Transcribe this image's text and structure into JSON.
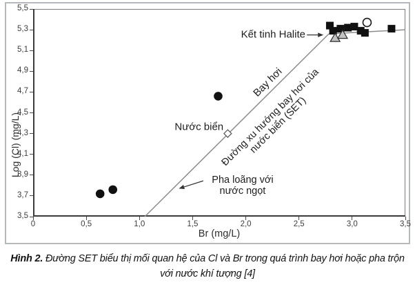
{
  "figure": {
    "caption": {
      "prefix": "Hình 2.",
      "line1": " Đường SET biểu thị mối quan hệ của Cl và Br trong quá trình bay hơi hoặc pha trộn",
      "line2": "với nước khí tượng [4]"
    }
  },
  "chart_data": {
    "type": "scatter",
    "title": "",
    "xlabel": "Br (mg/L)",
    "ylabel": "Log (Cl) (mg/L)",
    "xlim": [
      0,
      3.5
    ],
    "ylim": [
      3.5,
      5.5
    ],
    "grid": false,
    "x_tick_values": [
      0,
      0.5,
      1.0,
      1.5,
      2.0,
      2.5,
      3.0,
      3.5
    ],
    "x_tick_labels": [
      "0",
      "0,5",
      "1,0",
      "1,5",
      "2,0",
      "2,5",
      "3,0",
      "3,5"
    ],
    "y_tick_values": [
      3.5,
      3.7,
      3.9,
      4.1,
      4.3,
      4.5,
      4.7,
      4.9,
      5.1,
      5.3,
      5.5
    ],
    "y_tick_labels": [
      "3,5",
      "3,7",
      "3,9",
      "4,1",
      "4,3",
      "4,5",
      "4,7",
      "4,9",
      "5,1",
      "5,3",
      "5,5"
    ],
    "colors": {
      "line": "#8c8c8c",
      "marker_black": "#111111",
      "triangle_fill": "#c2c2c2",
      "triangle_stroke": "#2a2a2a",
      "open_stroke": "#1a1a1a",
      "diamond_stroke": "#555555",
      "arrow": "#333333"
    },
    "lines": [
      {
        "name": "set-evaporation-line",
        "points": [
          [
            1.05,
            3.5
          ],
          [
            2.78,
            5.26
          ]
        ]
      },
      {
        "name": "halite-branch-line",
        "points": [
          [
            2.78,
            5.26
          ],
          [
            3.5,
            5.3
          ]
        ]
      }
    ],
    "series": [
      {
        "name": "nuoc-ngot-pha-loang",
        "marker": "filled-circle",
        "points": [
          [
            0.63,
            3.72
          ],
          [
            0.75,
            3.76
          ],
          [
            1.74,
            4.66
          ]
        ]
      },
      {
        "name": "nuoc-bien-seawater",
        "marker": "open-diamond",
        "points": [
          [
            1.83,
            4.3
          ]
        ]
      },
      {
        "name": "ket-tinh-halite-squares",
        "marker": "filled-square",
        "points": [
          [
            2.79,
            5.34
          ],
          [
            2.82,
            5.29
          ],
          [
            2.89,
            5.31
          ],
          [
            2.96,
            5.32
          ],
          [
            3.02,
            5.33
          ],
          [
            3.08,
            5.29
          ],
          [
            3.12,
            5.27
          ],
          [
            3.37,
            5.31
          ]
        ]
      },
      {
        "name": "halite-triangles",
        "marker": "gray-triangle",
        "points": [
          [
            2.84,
            5.22
          ],
          [
            2.91,
            5.25
          ]
        ]
      },
      {
        "name": "halite-open-circle",
        "marker": "open-circle",
        "points": [
          [
            3.14,
            5.37
          ]
        ]
      }
    ],
    "annotations": [
      {
        "id": "ket-tinh-halite",
        "text": "Kết tinh Halite",
        "x": 2.56,
        "y": 5.25,
        "align": "right",
        "rotate": 0,
        "size": 15,
        "arrow": {
          "x1": 2.575,
          "y1": 5.25,
          "x2": 2.73,
          "y2": 5.25
        }
      },
      {
        "id": "bay-hoi",
        "text": "Bay hơi",
        "x": 2.21,
        "y": 4.79,
        "align": "center",
        "rotate": -45,
        "size": 15
      },
      {
        "id": "duong-xu-huong-set",
        "text": "Đường xu hướng bay hơi của\nnước biển (SET)",
        "x": 2.27,
        "y": 4.42,
        "align": "center",
        "rotate": -45,
        "size": 14.5
      },
      {
        "id": "nuoc-bien",
        "text": "Nước biển",
        "x": 1.79,
        "y": 4.36,
        "align": "right",
        "rotate": 0,
        "size": 15
      },
      {
        "id": "pha-loang",
        "text": "Pha loãng với\nnước ngọt",
        "x": 1.97,
        "y": 3.8,
        "align": "center",
        "rotate": 0,
        "size": 14.5,
        "arrow": {
          "x1": 1.6,
          "y1": 3.845,
          "x2": 1.37,
          "y2": 3.77
        }
      }
    ]
  }
}
